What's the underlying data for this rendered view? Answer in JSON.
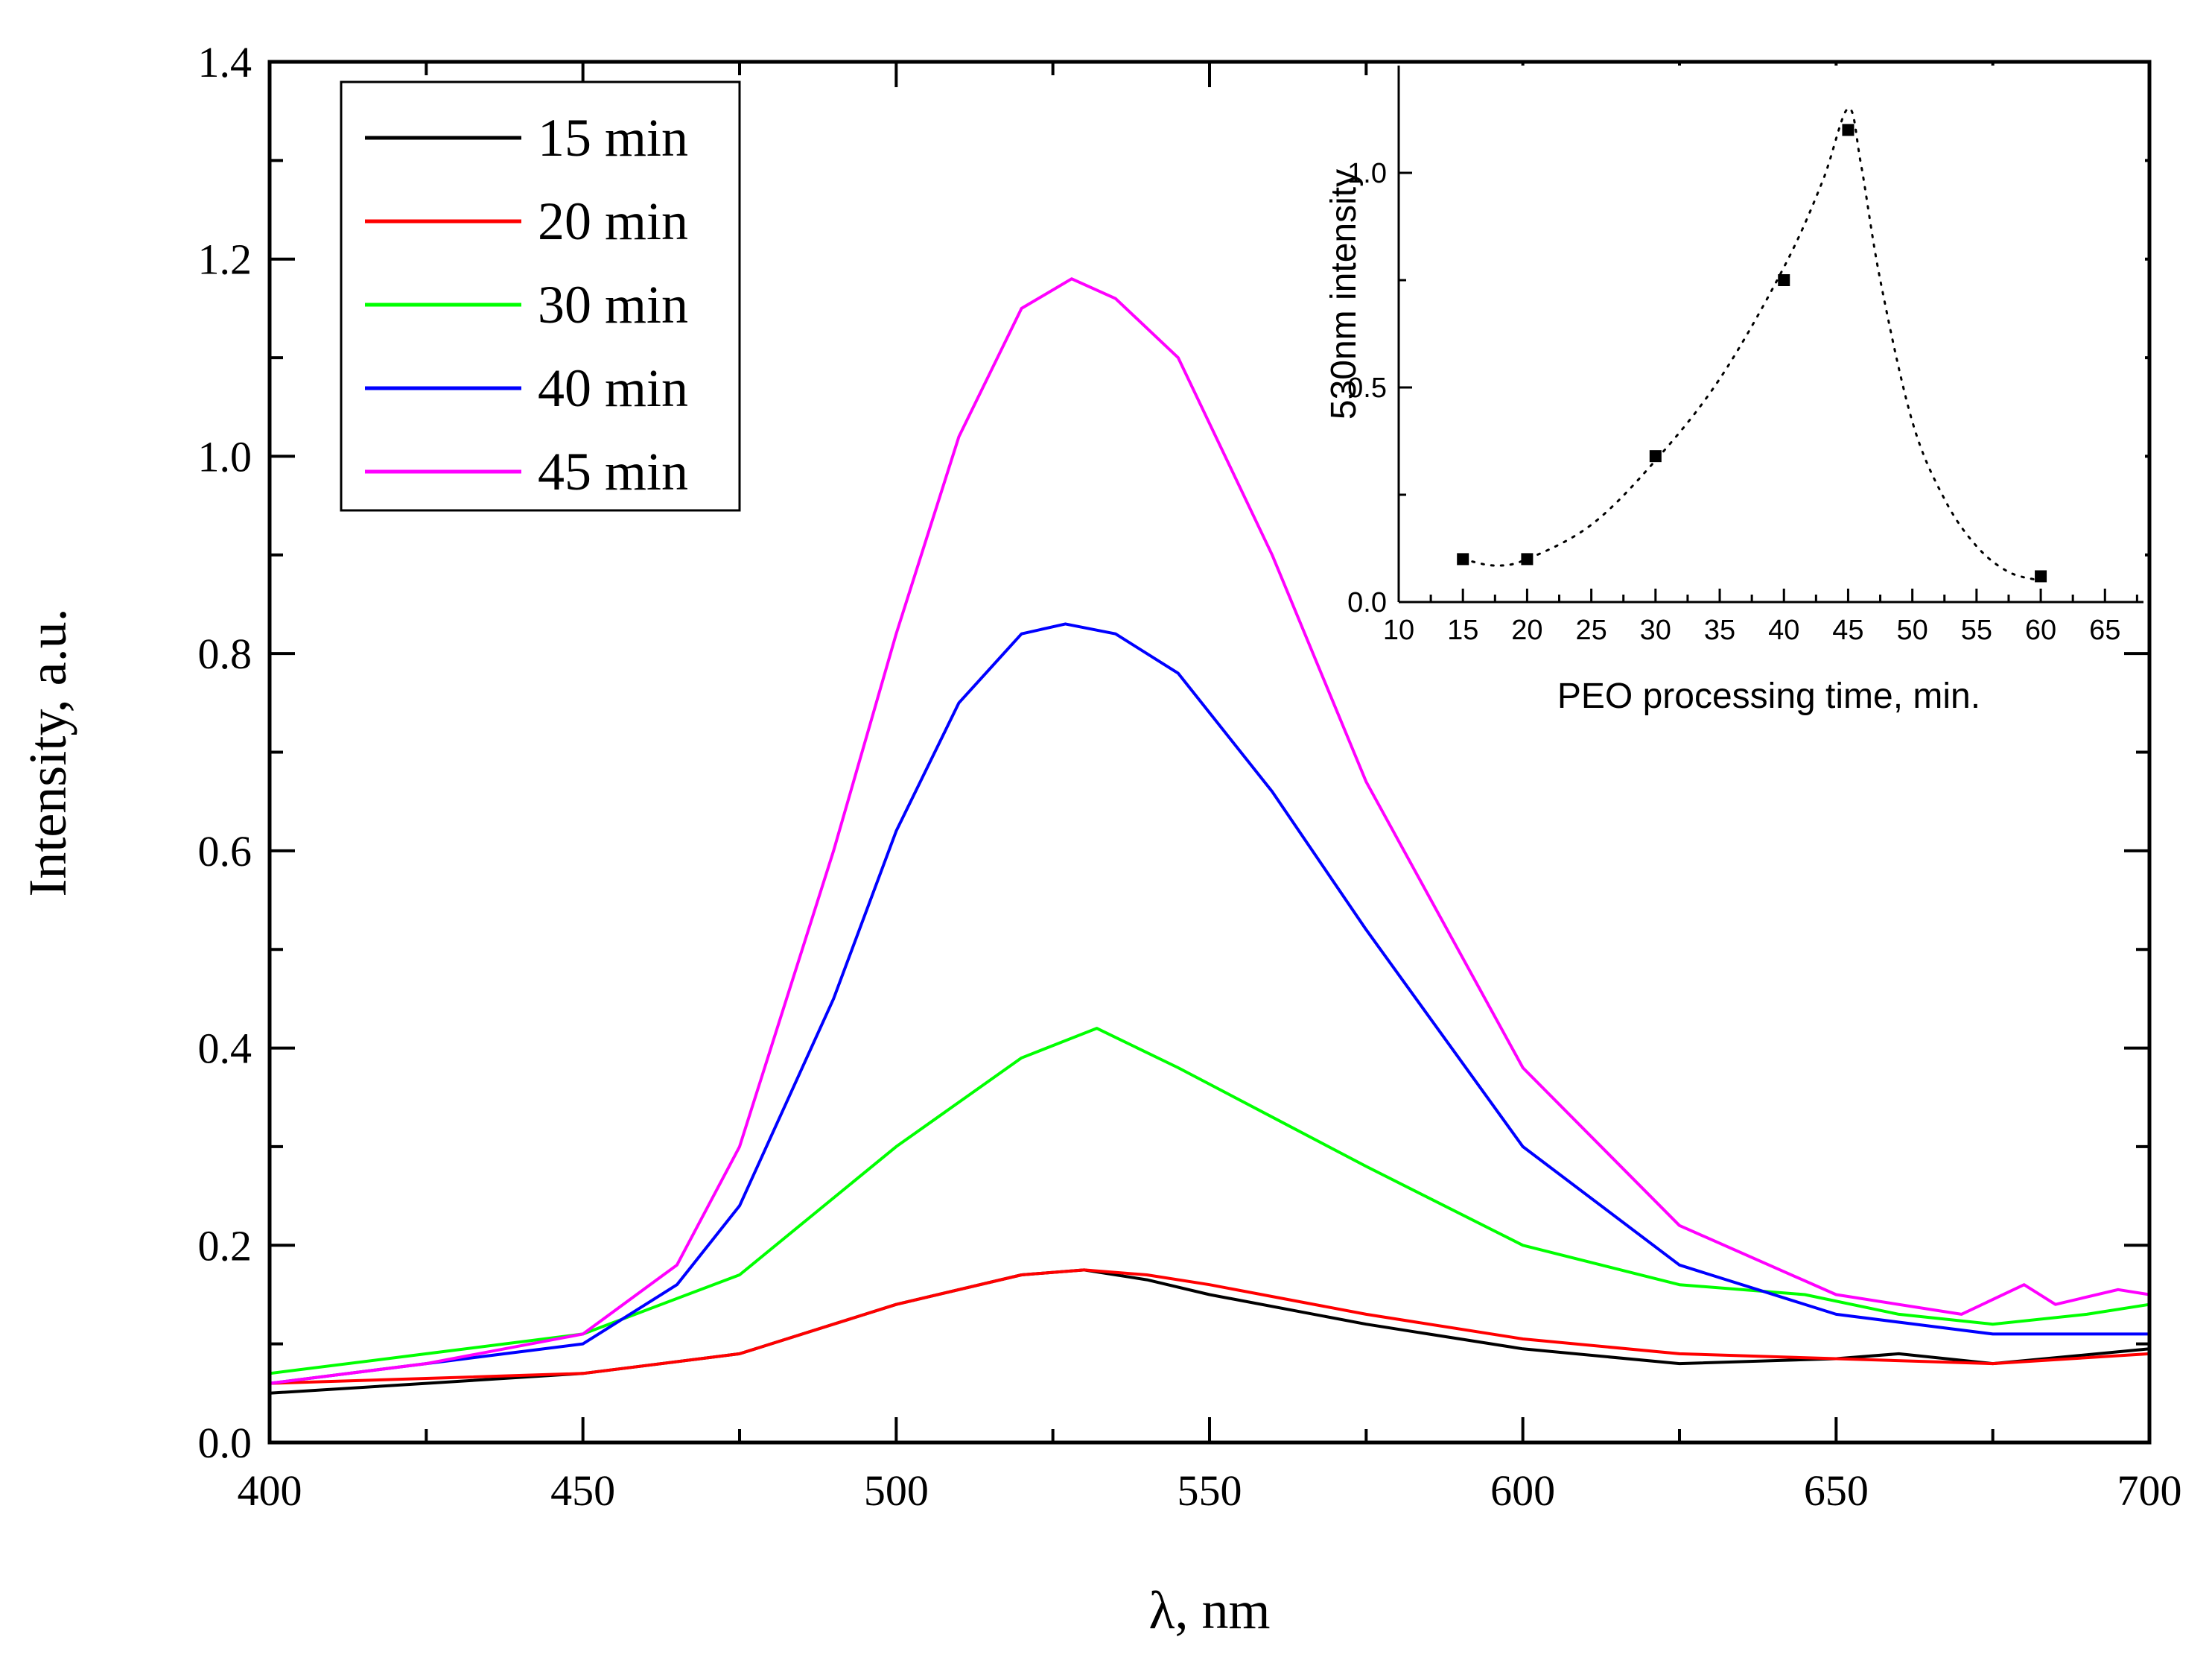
{
  "chart_data": [
    {
      "type": "line",
      "xlabel": "λ, nm",
      "ylabel": "Intensity, a.u.",
      "xlim": [
        400,
        700
      ],
      "ylim": [
        0.0,
        1.4
      ],
      "x_ticks": [
        "400",
        "450",
        "500",
        "550",
        "600",
        "650",
        "700"
      ],
      "y_ticks": [
        "0.0",
        "0.2",
        "0.4",
        "0.6",
        "0.8",
        "1.0",
        "1.2",
        "1.4"
      ],
      "grid": false,
      "legend": "top-left",
      "series": [
        {
          "name": "15 min",
          "color": "#000000",
          "x": [
            400,
            425,
            450,
            475,
            500,
            520,
            530,
            540,
            550,
            575,
            600,
            625,
            650,
            660,
            675,
            700
          ],
          "y": [
            0.05,
            0.06,
            0.07,
            0.09,
            0.14,
            0.17,
            0.175,
            0.165,
            0.15,
            0.12,
            0.095,
            0.08,
            0.085,
            0.09,
            0.08,
            0.095
          ]
        },
        {
          "name": "20 min",
          "color": "#ff0000",
          "x": [
            400,
            425,
            450,
            475,
            500,
            520,
            530,
            540,
            550,
            575,
            600,
            625,
            650,
            675,
            700
          ],
          "y": [
            0.06,
            0.065,
            0.07,
            0.09,
            0.14,
            0.17,
            0.175,
            0.17,
            0.16,
            0.13,
            0.105,
            0.09,
            0.085,
            0.08,
            0.09
          ]
        },
        {
          "name": "30 min",
          "color": "#00ff00",
          "x": [
            400,
            425,
            450,
            475,
            500,
            520,
            532,
            545,
            560,
            575,
            600,
            625,
            645,
            660,
            675,
            690,
            700
          ],
          "y": [
            0.07,
            0.09,
            0.11,
            0.17,
            0.3,
            0.39,
            0.42,
            0.38,
            0.33,
            0.28,
            0.2,
            0.16,
            0.15,
            0.13,
            0.12,
            0.13,
            0.14
          ]
        },
        {
          "name": "40 min",
          "color": "#0000ff",
          "x": [
            400,
            425,
            450,
            465,
            475,
            490,
            500,
            510,
            520,
            527,
            535,
            545,
            560,
            575,
            600,
            625,
            650,
            675,
            700
          ],
          "y": [
            0.06,
            0.08,
            0.1,
            0.16,
            0.24,
            0.45,
            0.62,
            0.75,
            0.82,
            0.83,
            0.82,
            0.78,
            0.66,
            0.52,
            0.3,
            0.18,
            0.13,
            0.11,
            0.11
          ]
        },
        {
          "name": "45 min",
          "color": "#ff00ff",
          "x": [
            400,
            425,
            450,
            465,
            475,
            490,
            500,
            510,
            520,
            528,
            535,
            545,
            560,
            575,
            600,
            625,
            650,
            670,
            680,
            685,
            695,
            700
          ],
          "y": [
            0.06,
            0.08,
            0.11,
            0.18,
            0.3,
            0.6,
            0.82,
            1.02,
            1.15,
            1.18,
            1.16,
            1.1,
            0.9,
            0.67,
            0.38,
            0.22,
            0.15,
            0.13,
            0.16,
            0.14,
            0.155,
            0.15
          ]
        }
      ]
    },
    {
      "type": "scatter",
      "xlabel": "PEO processing time, min.",
      "ylabel": "530nm intensity",
      "xlim": [
        10,
        68
      ],
      "ylim": [
        0.0,
        1.25
      ],
      "x_ticks": [
        "10",
        "15",
        "20",
        "25",
        "30",
        "35",
        "40",
        "45",
        "50",
        "55",
        "60",
        "65"
      ],
      "y_ticks": [
        "0.0",
        "0.5",
        "1.0"
      ],
      "grid": false,
      "legend": "none",
      "series": [
        {
          "x": [
            15,
            20,
            30,
            40,
            45,
            60
          ],
          "y": [
            0.1,
            0.1,
            0.34,
            0.75,
            1.1,
            0.06
          ]
        }
      ],
      "trend": {
        "style": "dotted",
        "x": [
          15,
          17.5,
          20,
          25,
          30,
          35,
          40,
          43,
          45,
          46,
          47.5,
          50,
          52.5,
          55,
          57.5,
          60
        ],
        "y": [
          0.1,
          0.085,
          0.1,
          0.18,
          0.33,
          0.52,
          0.78,
          0.98,
          1.15,
          1.02,
          0.75,
          0.42,
          0.24,
          0.13,
          0.07,
          0.05
        ]
      }
    }
  ]
}
